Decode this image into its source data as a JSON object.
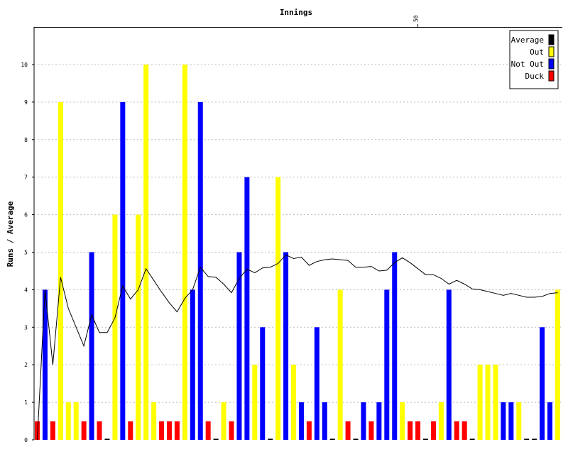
{
  "chart_data": {
    "type": "bar",
    "title": "Innings",
    "xlabel": "",
    "ylabel": "Runs / Average",
    "ylim": [
      0,
      11
    ],
    "y_ticks": [
      "0",
      "1",
      "2",
      "3",
      "4",
      "5",
      "6",
      "7",
      "8",
      "9",
      "10"
    ],
    "x_ticks": [
      {
        "value": 50,
        "label": "50"
      }
    ],
    "x_axis_position": "top",
    "grid": true,
    "legend_position": "top-right",
    "legend": [
      {
        "key": "average",
        "label": "Average",
        "color": "#000000"
      },
      {
        "key": "out",
        "label": "Out",
        "color": "#ffff00"
      },
      {
        "key": "notout",
        "label": "Not Out",
        "color": "#0000ff"
      },
      {
        "key": "duck",
        "label": "Duck",
        "color": "#ff0000"
      }
    ],
    "innings": [
      {
        "inning": 1,
        "runs": 0,
        "type": "duck"
      },
      {
        "inning": 2,
        "runs": 4,
        "type": "notout"
      },
      {
        "inning": 3,
        "runs": 0,
        "type": "duck"
      },
      {
        "inning": 4,
        "runs": 9,
        "type": "out"
      },
      {
        "inning": 5,
        "runs": 1,
        "type": "out"
      },
      {
        "inning": 6,
        "runs": 1,
        "type": "out"
      },
      {
        "inning": 7,
        "runs": 0,
        "type": "duck"
      },
      {
        "inning": 8,
        "runs": 5,
        "type": "notout"
      },
      {
        "inning": 9,
        "runs": 0,
        "type": "duck"
      },
      {
        "inning": 10,
        "runs": 0,
        "type": "out"
      },
      {
        "inning": 11,
        "runs": 6,
        "type": "out"
      },
      {
        "inning": 12,
        "runs": 9,
        "type": "notout"
      },
      {
        "inning": 13,
        "runs": 0,
        "type": "duck"
      },
      {
        "inning": 14,
        "runs": 6,
        "type": "out"
      },
      {
        "inning": 15,
        "runs": 10,
        "type": "out"
      },
      {
        "inning": 16,
        "runs": 1,
        "type": "out"
      },
      {
        "inning": 17,
        "runs": 0,
        "type": "duck"
      },
      {
        "inning": 18,
        "runs": 0,
        "type": "duck"
      },
      {
        "inning": 19,
        "runs": 0,
        "type": "duck"
      },
      {
        "inning": 20,
        "runs": 10,
        "type": "out"
      },
      {
        "inning": 21,
        "runs": 4,
        "type": "notout"
      },
      {
        "inning": 22,
        "runs": 9,
        "type": "notout"
      },
      {
        "inning": 23,
        "runs": 0,
        "type": "duck"
      },
      {
        "inning": 24,
        "runs": 0,
        "type": "out"
      },
      {
        "inning": 25,
        "runs": 1,
        "type": "out"
      },
      {
        "inning": 26,
        "runs": 0,
        "type": "duck"
      },
      {
        "inning": 27,
        "runs": 5,
        "type": "notout"
      },
      {
        "inning": 28,
        "runs": 7,
        "type": "notout"
      },
      {
        "inning": 29,
        "runs": 2,
        "type": "out"
      },
      {
        "inning": 30,
        "runs": 3,
        "type": "notout"
      },
      {
        "inning": 31,
        "runs": 0,
        "type": "out"
      },
      {
        "inning": 32,
        "runs": 7,
        "type": "out"
      },
      {
        "inning": 33,
        "runs": 5,
        "type": "notout"
      },
      {
        "inning": 34,
        "runs": 2,
        "type": "out"
      },
      {
        "inning": 35,
        "runs": 1,
        "type": "notout"
      },
      {
        "inning": 36,
        "runs": 0,
        "type": "duck"
      },
      {
        "inning": 37,
        "runs": 3,
        "type": "notout"
      },
      {
        "inning": 38,
        "runs": 1,
        "type": "notout"
      },
      {
        "inning": 39,
        "runs": 0,
        "type": "out"
      },
      {
        "inning": 40,
        "runs": 4,
        "type": "out"
      },
      {
        "inning": 41,
        "runs": 0,
        "type": "duck"
      },
      {
        "inning": 42,
        "runs": 0,
        "type": "out"
      },
      {
        "inning": 43,
        "runs": 1,
        "type": "notout"
      },
      {
        "inning": 44,
        "runs": 0,
        "type": "duck"
      },
      {
        "inning": 45,
        "runs": 1,
        "type": "notout"
      },
      {
        "inning": 46,
        "runs": 4,
        "type": "notout"
      },
      {
        "inning": 47,
        "runs": 5,
        "type": "notout"
      },
      {
        "inning": 48,
        "runs": 1,
        "type": "out"
      },
      {
        "inning": 49,
        "runs": 0,
        "type": "duck"
      },
      {
        "inning": 50,
        "runs": 0,
        "type": "duck"
      },
      {
        "inning": 51,
        "runs": 0,
        "type": "out"
      },
      {
        "inning": 52,
        "runs": 0,
        "type": "duck"
      },
      {
        "inning": 53,
        "runs": 1,
        "type": "out"
      },
      {
        "inning": 54,
        "runs": 4,
        "type": "notout"
      },
      {
        "inning": 55,
        "runs": 0,
        "type": "duck"
      },
      {
        "inning": 56,
        "runs": 0,
        "type": "duck"
      },
      {
        "inning": 57,
        "runs": 0,
        "type": "out"
      },
      {
        "inning": 58,
        "runs": 2,
        "type": "out"
      },
      {
        "inning": 59,
        "runs": 2,
        "type": "out"
      },
      {
        "inning": 60,
        "runs": 2,
        "type": "out"
      },
      {
        "inning": 61,
        "runs": 1,
        "type": "notout"
      },
      {
        "inning": 62,
        "runs": 1,
        "type": "notout"
      },
      {
        "inning": 63,
        "runs": 1,
        "type": "out"
      },
      {
        "inning": 64,
        "runs": 0,
        "type": "out"
      },
      {
        "inning": 65,
        "runs": 0,
        "type": "out"
      },
      {
        "inning": 66,
        "runs": 3,
        "type": "notout"
      },
      {
        "inning": 67,
        "runs": 1,
        "type": "notout"
      },
      {
        "inning": 68,
        "runs": 4,
        "type": "out"
      }
    ],
    "average": [
      0.0,
      4.0,
      2.0,
      4.33,
      3.5,
      3.0,
      2.5,
      3.33,
      2.86,
      2.86,
      3.25,
      4.1,
      3.75,
      4.0,
      4.56,
      4.25,
      3.94,
      3.65,
      3.41,
      3.77,
      4.0,
      4.6,
      4.35,
      4.33,
      4.15,
      3.92,
      4.3,
      4.55,
      4.45,
      4.58,
      4.6,
      4.7,
      4.93,
      4.83,
      4.87,
      4.65,
      4.75,
      4.8,
      4.82,
      4.8,
      4.78,
      4.6,
      4.6,
      4.62,
      4.5,
      4.52,
      4.72,
      4.85,
      4.72,
      4.56,
      4.4,
      4.4,
      4.3,
      4.15,
      4.25,
      4.15,
      4.02,
      4.0,
      3.95,
      3.9,
      3.85,
      3.9,
      3.85,
      3.8,
      3.8,
      3.82,
      3.9,
      3.92
    ]
  }
}
